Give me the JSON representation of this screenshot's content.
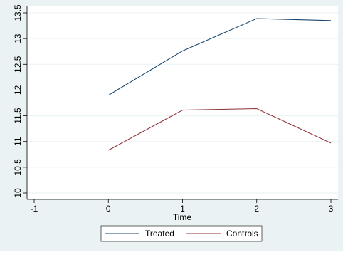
{
  "chart_data": {
    "type": "line",
    "xlabel": "Time",
    "ylabel": "",
    "xlim": [
      -1,
      3
    ],
    "ylim": [
      10,
      13.5
    ],
    "x_ticks": [
      -1,
      0,
      1,
      2,
      3
    ],
    "y_ticks": [
      10,
      10.5,
      11,
      11.5,
      12,
      12.5,
      13,
      13.5
    ],
    "x_tick_labels": [
      "-1",
      "0",
      "1",
      "2",
      "3"
    ],
    "y_tick_labels": [
      "10",
      "10.5",
      "11",
      "11.5",
      "12",
      "12.5",
      "13",
      "13.5"
    ],
    "grid": true,
    "legend_position": "bottom",
    "x": [
      0,
      1,
      2,
      3
    ],
    "series": [
      {
        "name": "Treated",
        "values": [
          11.9,
          12.76,
          13.39,
          13.35
        ],
        "color": "#1a476f"
      },
      {
        "name": "Controls",
        "values": [
          10.83,
          11.61,
          11.64,
          10.97
        ],
        "color": "#90353b"
      }
    ],
    "colors": {
      "background": "#eaf2f3",
      "plot_background": "#ffffff",
      "grid": "#eaf2f3"
    }
  }
}
